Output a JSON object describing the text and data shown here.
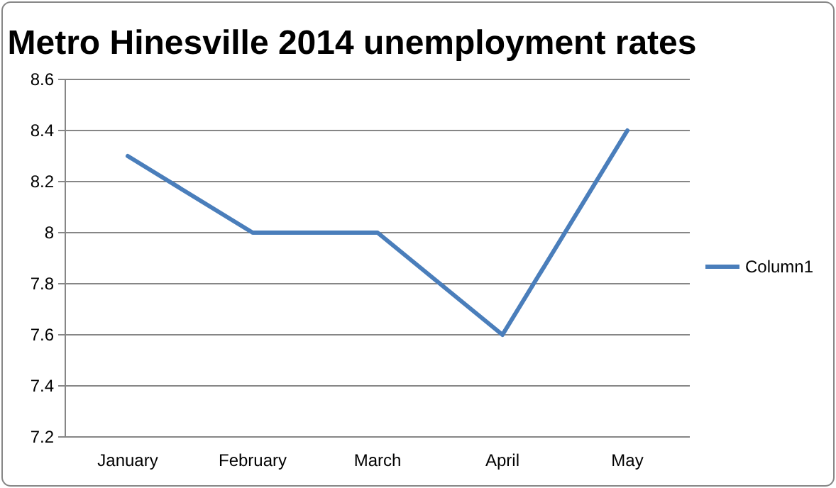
{
  "chart_data": {
    "type": "line",
    "title": "Metro Hinesville 2014 unemployment rates",
    "categories": [
      "January",
      "February",
      "March",
      "April",
      "May"
    ],
    "series": [
      {
        "name": "Column1",
        "color": "#4a7ebb",
        "values": [
          8.3,
          8.0,
          8.0,
          7.6,
          8.4
        ]
      }
    ],
    "ylim": [
      7.2,
      8.6
    ],
    "yticks": [
      7.2,
      7.4,
      7.6,
      7.8,
      8,
      8.2,
      8.4,
      8.6
    ],
    "grid": "y",
    "legend": "right",
    "marker": "none",
    "line_style": "solid"
  }
}
